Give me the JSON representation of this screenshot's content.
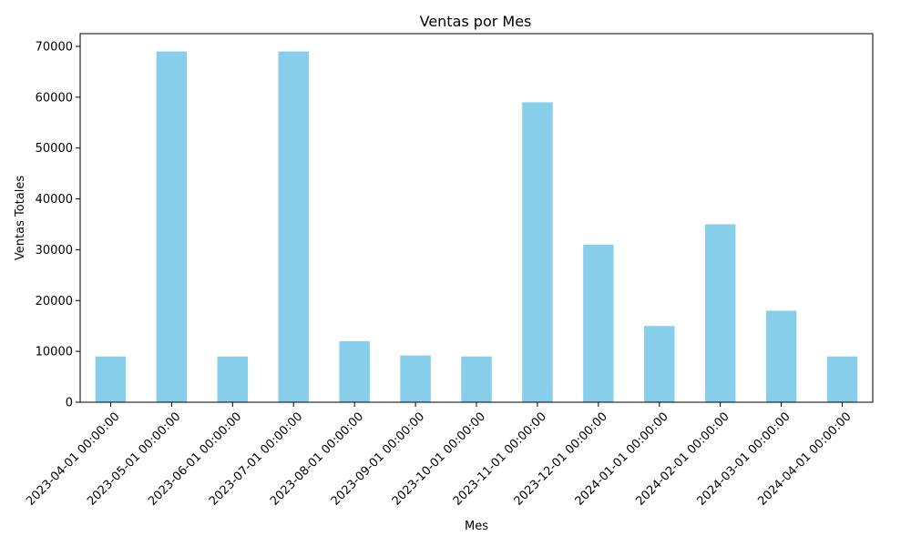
{
  "chart_data": {
    "type": "bar",
    "title": "Ventas por Mes",
    "xlabel": "Mes",
    "ylabel": "Ventas Totales",
    "categories": [
      "2023-04-01 00:00:00",
      "2023-05-01 00:00:00",
      "2023-06-01 00:00:00",
      "2023-07-01 00:00:00",
      "2023-08-01 00:00:00",
      "2023-09-01 00:00:00",
      "2023-10-01 00:00:00",
      "2023-11-01 00:00:00",
      "2023-12-01 00:00:00",
      "2024-01-01 00:00:00",
      "2024-02-01 00:00:00",
      "2024-03-01 00:00:00",
      "2024-04-01 00:00:00"
    ],
    "values": [
      9000,
      69000,
      9000,
      69000,
      12000,
      9200,
      9000,
      59000,
      31000,
      15000,
      35000,
      18000,
      9000
    ],
    "ylim": [
      0,
      72500
    ],
    "yticks": [
      0,
      10000,
      20000,
      30000,
      40000,
      50000,
      60000,
      70000
    ],
    "bar_color": "#87ceeb",
    "grid": false,
    "legend": false,
    "x_tick_rotation_deg": 45
  }
}
